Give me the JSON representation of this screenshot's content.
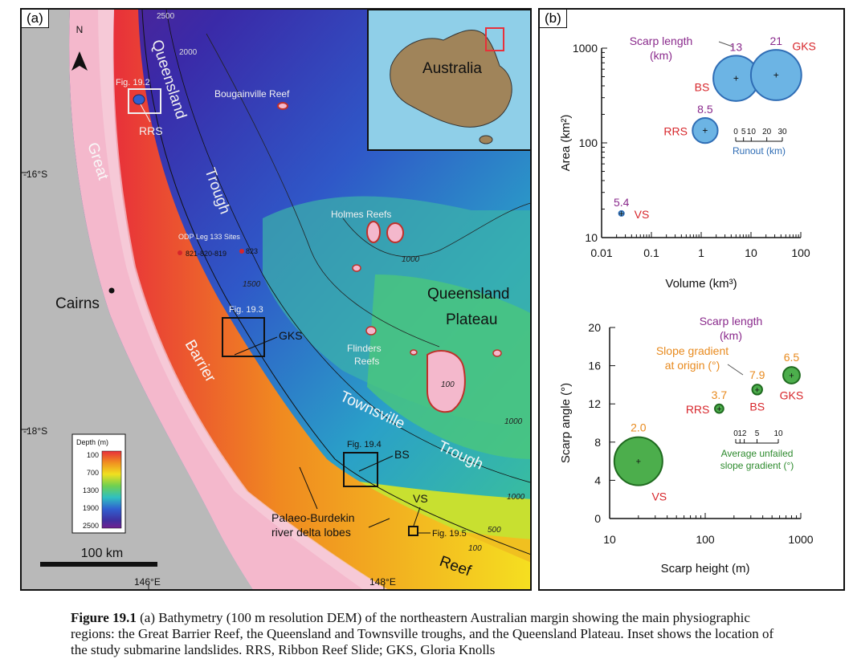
{
  "map": {
    "panel_label": "(a)",
    "north": "N",
    "inset_label": "Australia",
    "contours": [
      "2500",
      "2000",
      "1500",
      "1000",
      "1000",
      "1000",
      "500",
      "100",
      "100"
    ],
    "regions": {
      "queensland_trough": [
        "Queensland",
        "Trough"
      ],
      "great": "Great",
      "barrier": "Barrier",
      "reef": "Reef",
      "queensland_plateau": [
        "Queensland",
        "Plateau"
      ],
      "townsville_trough": [
        "Townsville",
        "Trough"
      ]
    },
    "places": {
      "cairns": "Cairns",
      "bougainville": "Bougainville Reef",
      "holmes": "Holmes  Reefs",
      "flinders": [
        "Flinders",
        "Reefs"
      ],
      "odp": "ODP Leg 133 Sites",
      "odp_sites": "821-820-819",
      "odp_823": "823",
      "palaeo": [
        "Palaeo-Burdekin",
        "river delta lobes"
      ]
    },
    "figs": {
      "f2": "Fig. 19.2",
      "f3": "Fig. 19.3",
      "f4": "Fig. 19.4",
      "f5": "Fig. 19.5"
    },
    "slides": {
      "rrs": "RRS",
      "gks": "GKS",
      "bs": "BS",
      "vs": "VS"
    },
    "lat_labels": [
      "-16°S",
      "-18°S"
    ],
    "lon_labels": [
      "146°E",
      "148°E"
    ],
    "legend": {
      "title": "Depth (m)",
      "ticks": [
        "100",
        "700",
        "1300",
        "1900",
        "2500"
      ]
    },
    "scale": "100 km"
  },
  "charts": {
    "panel_label": "(b)"
  },
  "chart_data": [
    {
      "type": "scatter",
      "xlabel": "Volume (km³)",
      "ylabel": "Area (km²)",
      "xscale": "log",
      "yscale": "log",
      "xlim": [
        0.01,
        100
      ],
      "ylim": [
        10,
        1000
      ],
      "xticks": [
        "0.01",
        "0.1",
        "1",
        "10",
        "100"
      ],
      "yticks": [
        "10",
        "100",
        "1000"
      ],
      "bubble_size_label": [
        "Scarp length",
        "(km)"
      ],
      "size_legend_title": "Runout (km)",
      "size_legend_ticks": [
        "0",
        "5",
        "10",
        "20",
        "30"
      ],
      "points": [
        {
          "name": "VS",
          "x": 0.025,
          "y": 18,
          "size_value": "5.4",
          "runout_km": 1
        },
        {
          "name": "RRS",
          "x": 1.2,
          "y": 135,
          "size_value": "8.5",
          "runout_km": 13
        },
        {
          "name": "BS",
          "x": 5,
          "y": 480,
          "size_value": "13",
          "runout_km": 25
        },
        {
          "name": "GKS",
          "x": 32,
          "y": 520,
          "size_value": "21",
          "runout_km": 28
        }
      ]
    },
    {
      "type": "scatter",
      "xlabel": "Scarp height (m)",
      "ylabel": "Scarp angle (°)",
      "xscale": "log",
      "xlim": [
        10,
        1000
      ],
      "ylim": [
        0,
        20
      ],
      "xticks": [
        "10",
        "100",
        "1000"
      ],
      "yticks": [
        "0",
        "4",
        "8",
        "12",
        "16",
        "20"
      ],
      "top_label_title": [
        "Slope gradient",
        "at origin (°)"
      ],
      "top_label_title_2": [
        "Scarp length",
        "(km)"
      ],
      "size_legend_title": [
        "Average unfailed",
        "slope gradient (°)"
      ],
      "size_legend_ticks": [
        "0",
        "1",
        "2",
        "5",
        "10"
      ],
      "points": [
        {
          "name": "VS",
          "x": 20,
          "y": 6,
          "top_value": "2.0",
          "bubble_value": 10
        },
        {
          "name": "RRS",
          "x": 140,
          "y": 11.5,
          "top_value": "3.7",
          "bubble_value": 1.2
        },
        {
          "name": "BS",
          "x": 350,
          "y": 13.5,
          "top_value": "7.9",
          "bubble_value": 1.5
        },
        {
          "name": "GKS",
          "x": 800,
          "y": 15,
          "top_value": "6.5",
          "bubble_value": 3
        }
      ]
    }
  ],
  "caption": {
    "figure": "Figure 19.1",
    "text": "(a) Bathymetry (100 m resolution DEM) of the northeastern Australian margin showing the main physiographic regions: the Great Barrier Reef, the Queensland and Townsville troughs, and the Queensland Plateau. Inset shows the location of the study submarine landslides. RRS, Ribbon Reef Slide; GKS, Gloria Knolls"
  },
  "colors": {
    "bubble_blue": "#6cb4e4",
    "bubble_green": "#4cae4c",
    "label_red": "#d7262b",
    "label_purple": "#8a2a8c",
    "label_orange": "#e88a1e",
    "label_blue": "#2f6db5",
    "label_green": "#2e8b2e"
  }
}
